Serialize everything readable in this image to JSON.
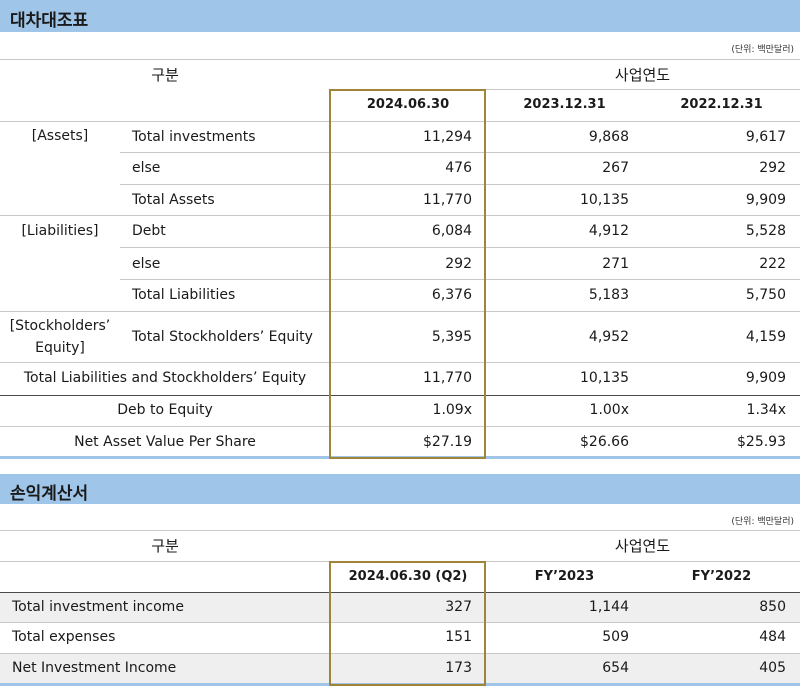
{
  "balance": {
    "title": "대차대조표",
    "unit": "(단위: 백만달러)",
    "category_header": "구분",
    "period_header": "사업연도",
    "columns": [
      "2024.06.30",
      "2023.12.31",
      "2022.12.31"
    ],
    "groups": [
      "[Assets]",
      "[Liabilities]",
      "[Stockholders’",
      "Equity]"
    ],
    "rows": [
      {
        "label": "Total investments",
        "values": [
          "11,294",
          "9,868",
          "9,617"
        ]
      },
      {
        "label": "else",
        "values": [
          "476",
          "267",
          "292"
        ]
      },
      {
        "label": "Total Assets",
        "values": [
          "11,770",
          "10,135",
          "9,909"
        ]
      },
      {
        "label": "Debt",
        "values": [
          "6,084",
          "4,912",
          "5,528"
        ]
      },
      {
        "label": "else",
        "values": [
          "292",
          "271",
          "222"
        ]
      },
      {
        "label": "Total Liabilities",
        "values": [
          "6,376",
          "5,183",
          "5,750"
        ]
      },
      {
        "label": "Total Stockholders’ Equity",
        "values": [
          "5,395",
          "4,952",
          "4,159"
        ]
      },
      {
        "label": "Total Liabilities and Stockholders’ Equity",
        "values": [
          "11,770",
          "10,135",
          "9,909"
        ]
      },
      {
        "label": "Deb to Equity",
        "values": [
          "1.09x",
          "1.00x",
          "1.34x"
        ]
      },
      {
        "label": "Net Asset Value Per Share",
        "values": [
          "$27.19",
          "$26.66",
          "$25.93"
        ]
      }
    ]
  },
  "income": {
    "title": "손익계산서",
    "unit": "(단위: 백만달러)",
    "category_header": "구분",
    "period_header": "사업연도",
    "columns": [
      "2024.06.30 (Q2)",
      "FY’2023",
      "FY’2022"
    ],
    "rows": [
      {
        "label": "Total investment income",
        "values": [
          "327",
          "1,144",
          "850"
        ]
      },
      {
        "label": "Total expenses",
        "values": [
          "151",
          "509",
          "484"
        ]
      },
      {
        "label": "Net Investment Income",
        "values": [
          "173",
          "654",
          "405"
        ]
      }
    ]
  },
  "colors": {
    "header_bar": "#9fc5e8",
    "highlight_border": "#a08438",
    "row_shade": "#efefef"
  }
}
